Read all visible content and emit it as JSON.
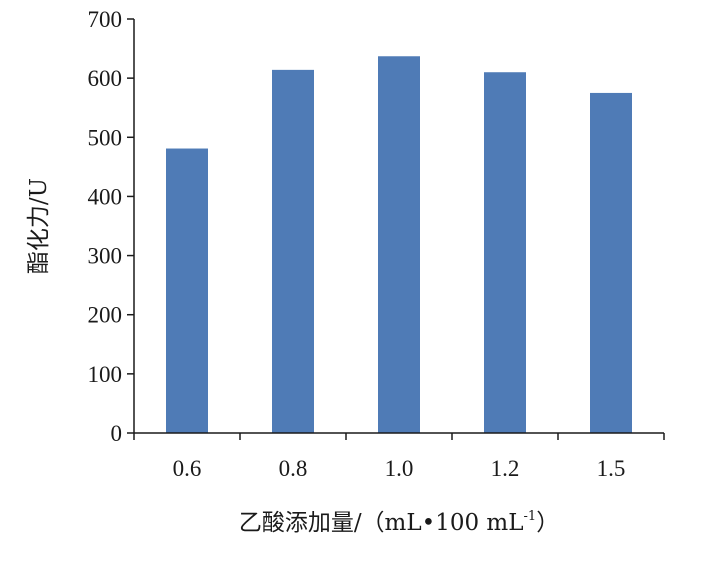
{
  "chart_data": {
    "type": "bar",
    "categories": [
      "0.6",
      "0.8",
      "1.0",
      "1.2",
      "1.5"
    ],
    "values": [
      481,
      614,
      637,
      610,
      575
    ],
    "ylabel": "酯化力/U",
    "xlabel_main": "乙酸添加量/（mL•100 mL",
    "xlabel_sup": "-1",
    "xlabel_end": "）",
    "ylim": [
      0,
      700
    ],
    "yticks": [
      0,
      100,
      200,
      300,
      400,
      500,
      600,
      700
    ],
    "grid": false,
    "legend": "none",
    "bar_color": "#4f7bb6"
  }
}
